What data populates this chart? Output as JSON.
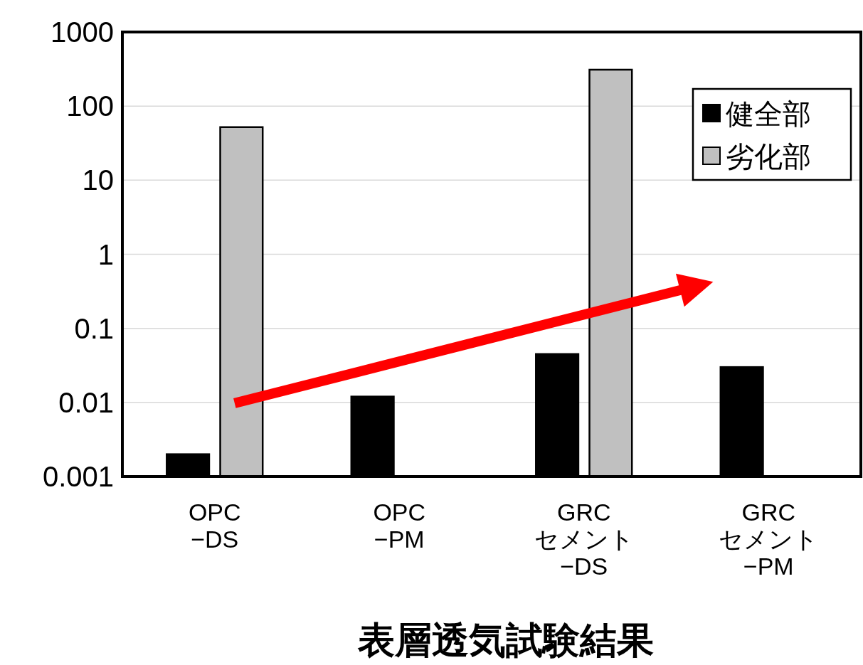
{
  "chart_data": {
    "type": "bar",
    "xlabel": "表層透気試験結果",
    "categories": [
      "OPC\n−DS",
      "OPC\n−PM",
      "GRC\nセメント\n−DS",
      "GRC\nセメント\n−PM"
    ],
    "series": [
      {
        "name": "健全部",
        "color": "#000000",
        "values": [
          0.002,
          0.012,
          0.045,
          0.03
        ]
      },
      {
        "name": "劣化部",
        "color": "#c0c0c0",
        "values": [
          52,
          null,
          310,
          null
        ]
      }
    ],
    "log": "y",
    "ylim": [
      0.001,
      1000
    ],
    "yticks": [
      0.001,
      0.01,
      0.1,
      1,
      10,
      100,
      1000
    ],
    "grid": "y",
    "legend": "top right"
  }
}
